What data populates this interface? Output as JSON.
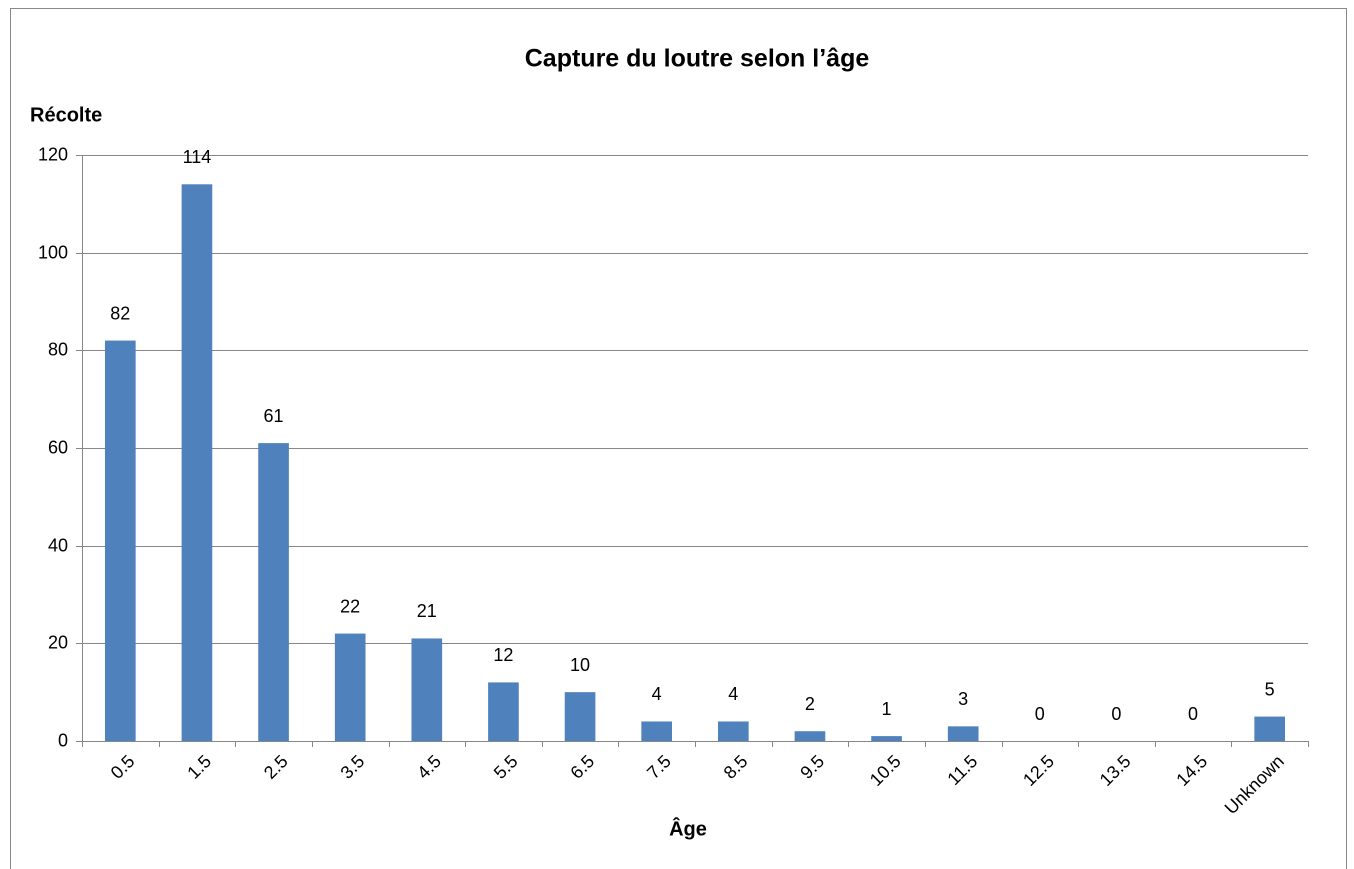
{
  "chart_data": {
    "type": "bar",
    "title": "Capture du loutre selon l’âge",
    "y_label": "Récolte",
    "x_label": "Âge",
    "categories": [
      "0.5",
      "1.5",
      "2.5",
      "3.5",
      "4.5",
      "5.5",
      "6.5",
      "7.5",
      "8.5",
      "9.5",
      "10.5",
      "11.5",
      "12.5",
      "13.5",
      "14.5",
      "Unknown"
    ],
    "values": [
      82,
      114,
      61,
      22,
      21,
      12,
      10,
      4,
      4,
      2,
      1,
      3,
      0,
      0,
      0,
      5
    ],
    "color": "#4f81bd",
    "ylim": [
      0,
      120
    ],
    "yticks": [
      0,
      20,
      40,
      60,
      80,
      100,
      120
    ],
    "grid": true,
    "data_labels": true
  }
}
